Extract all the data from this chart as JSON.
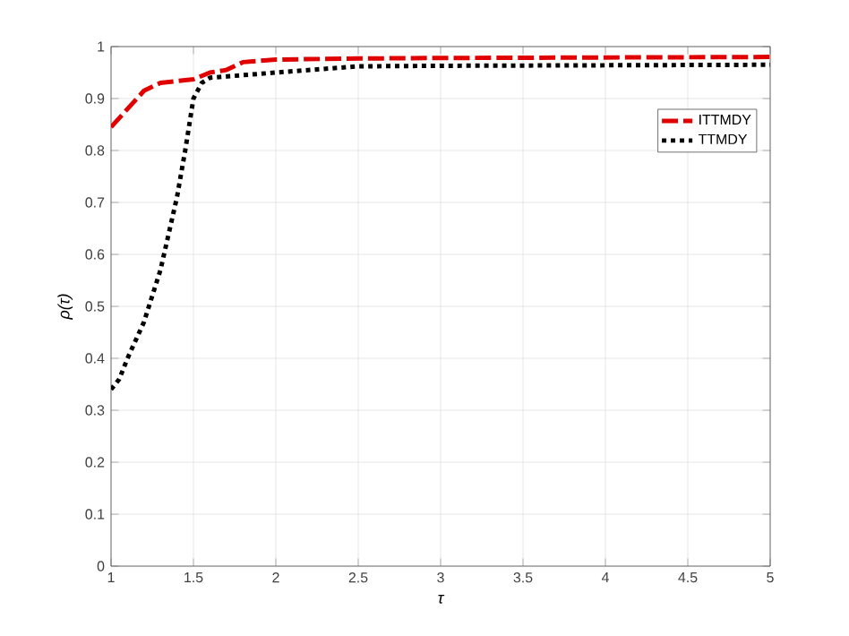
{
  "chart_data": {
    "type": "line",
    "xlabel": "τ",
    "ylabel": "ρ(τ)",
    "xlim": [
      1,
      5
    ],
    "ylim": [
      0,
      1
    ],
    "xticks": [
      1,
      1.5,
      2,
      2.5,
      3,
      3.5,
      4,
      4.5,
      5
    ],
    "yticks": [
      0,
      0.1,
      0.2,
      0.3,
      0.4,
      0.5,
      0.6,
      0.7,
      0.8,
      0.9,
      1
    ],
    "grid": true,
    "legend": "top right",
    "series": [
      {
        "name": "ITTMDY",
        "color": "#e00000",
        "line_style": "dashed",
        "x": [
          1,
          1.1,
          1.2,
          1.3,
          1.5,
          1.6,
          1.7,
          1.8,
          2,
          2.5,
          3,
          5
        ],
        "values": [
          0.845,
          0.88,
          0.915,
          0.93,
          0.937,
          0.95,
          0.955,
          0.97,
          0.975,
          0.977,
          0.978,
          0.98
        ]
      },
      {
        "name": "TTMDY",
        "color": "#000000",
        "line_style": "dotted",
        "x": [
          1,
          1.05,
          1.1,
          1.2,
          1.3,
          1.4,
          1.45,
          1.5,
          1.55,
          1.6,
          1.8,
          2,
          2.5,
          3,
          5
        ],
        "values": [
          0.34,
          0.36,
          0.4,
          0.47,
          0.57,
          0.71,
          0.8,
          0.9,
          0.93,
          0.94,
          0.945,
          0.95,
          0.962,
          0.963,
          0.965
        ]
      }
    ]
  }
}
